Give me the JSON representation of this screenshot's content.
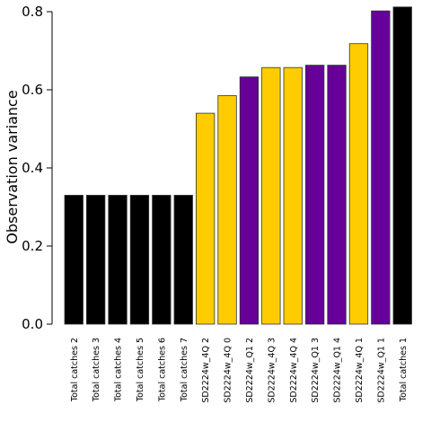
{
  "chart_data": {
    "type": "bar",
    "title": "",
    "xlabel": "",
    "ylabel": "Observation variance",
    "ylim": [
      0,
      0.8
    ],
    "yticks": [
      0.0,
      0.2,
      0.4,
      0.6,
      0.8
    ],
    "ytick_labels": [
      "0.0",
      "0.2",
      "0.4",
      "0.6",
      "0.8"
    ],
    "grid": false,
    "categories": [
      "Total catches 2",
      "Total catches 3",
      "Total catches 4",
      "Total catches 5",
      "Total catches 6",
      "Total catches 7",
      "SD2224w_4Q 2",
      "SD2224w_4Q 0",
      "SD2224w_Q1 2",
      "SD2224w_4Q 3",
      "SD2224w_4Q 4",
      "SD2224w_Q1 3",
      "SD2224w_Q1 4",
      "SD2224w_4Q 1",
      "SD2224w_Q1 1",
      "Total catches 1"
    ],
    "values": [
      0.33,
      0.33,
      0.33,
      0.33,
      0.33,
      0.33,
      0.54,
      0.585,
      0.633,
      0.657,
      0.657,
      0.663,
      0.663,
      0.718,
      0.802,
      0.812
    ],
    "colors": [
      "#000000",
      "#000000",
      "#000000",
      "#000000",
      "#000000",
      "#000000",
      "#FFCC00",
      "#FFCC00",
      "#660099",
      "#FFCC00",
      "#FFCC00",
      "#660099",
      "#660099",
      "#FFCC00",
      "#660099",
      "#000000"
    ]
  }
}
